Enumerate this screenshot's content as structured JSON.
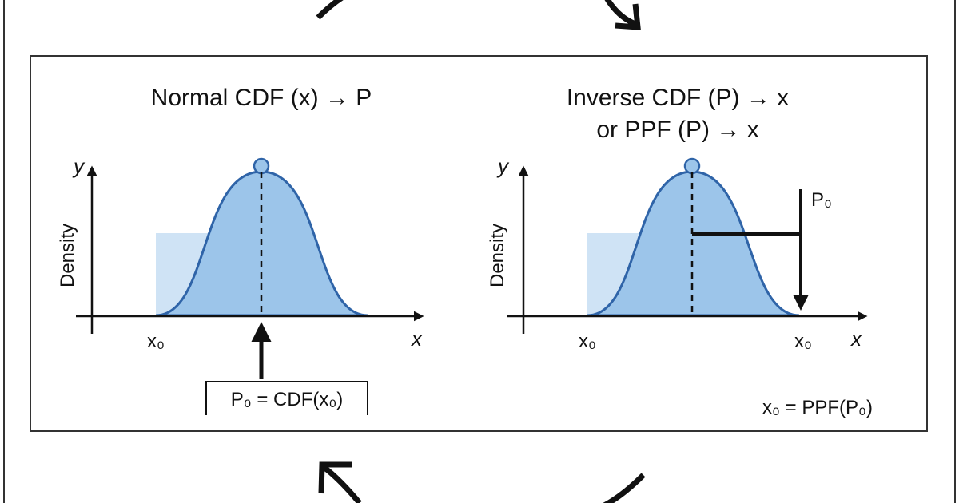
{
  "left": {
    "title": "Normal CDF (x) → P",
    "y_axis": "y",
    "y_label": "Density",
    "x_axis": "x",
    "x_tick": "x₀",
    "formula": "P₀ = CDF(x₀)"
  },
  "right": {
    "title_lines": [
      "Inverse CDF (P) → x",
      "or PPF (P) → x"
    ],
    "y_axis": "y",
    "y_label": "Density",
    "x_axis": "x",
    "x_ticks": [
      "x₀",
      "x₀"
    ],
    "p_label": "P₀",
    "formula": "x₀ = PPF(P₀)"
  }
}
